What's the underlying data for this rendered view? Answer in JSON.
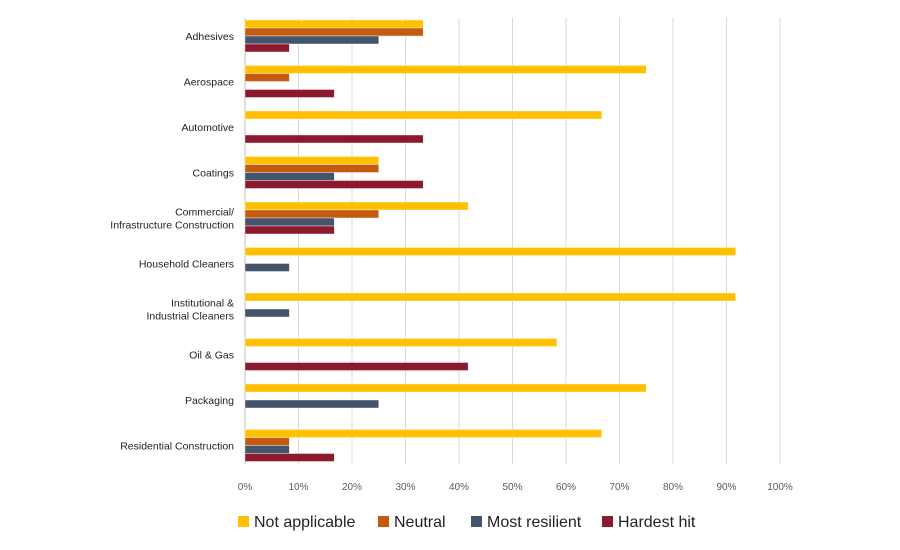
{
  "chart_data": {
    "type": "bar",
    "orientation": "horizontal",
    "title": "",
    "xlabel": "",
    "ylabel": "",
    "xlim": [
      0,
      100
    ],
    "x_tick_labels": [
      "0%",
      "10%",
      "20%",
      "30%",
      "40%",
      "50%",
      "60%",
      "70%",
      "80%",
      "90%",
      "100%"
    ],
    "grid": true,
    "legend_position": "bottom",
    "categories": [
      {
        "lines": [
          "Adhesives"
        ]
      },
      {
        "lines": [
          "Aerospace"
        ]
      },
      {
        "lines": [
          "Automotive"
        ]
      },
      {
        "lines": [
          "Coatings"
        ]
      },
      {
        "lines": [
          "Commercial/",
          "Infrastructure Construction"
        ]
      },
      {
        "lines": [
          "Household Cleaners"
        ]
      },
      {
        "lines": [
          "Institutional &",
          "Industrial Cleaners"
        ]
      },
      {
        "lines": [
          "Oil & Gas"
        ]
      },
      {
        "lines": [
          "Packaging"
        ]
      },
      {
        "lines": [
          "Residential Construction"
        ]
      }
    ],
    "series": [
      {
        "name": "Not applicable",
        "color": "#FFC000",
        "values": [
          33.3,
          75.0,
          66.7,
          25.0,
          41.7,
          91.7,
          91.7,
          58.3,
          75.0,
          66.7
        ]
      },
      {
        "name": "Neutral",
        "color": "#C55A11",
        "values": [
          33.3,
          8.3,
          0,
          25.0,
          25.0,
          0,
          0,
          0,
          0,
          8.3
        ]
      },
      {
        "name": "Most resilient",
        "color": "#44546A",
        "values": [
          25.0,
          0,
          0,
          16.7,
          16.7,
          8.3,
          8.3,
          0,
          25.0,
          8.3
        ]
      },
      {
        "name": "Hardest hit",
        "color": "#8B1A2E",
        "values": [
          8.3,
          16.7,
          33.3,
          33.3,
          16.7,
          0,
          0,
          41.7,
          0,
          16.7
        ]
      }
    ]
  }
}
